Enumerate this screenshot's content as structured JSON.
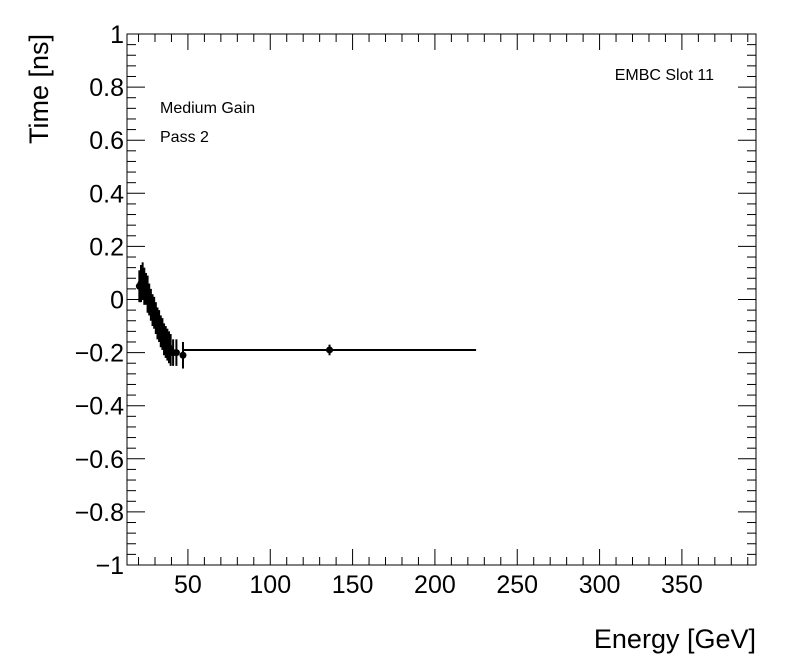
{
  "chart_data": {
    "type": "scatter",
    "title": "",
    "xlabel": "Energy [GeV]",
    "ylabel": "Time [ns]",
    "xlim": [
      13,
      395
    ],
    "ylim": [
      -1,
      1
    ],
    "x_ticks": [
      50,
      100,
      150,
      200,
      250,
      300,
      350
    ],
    "x_tick_labels": [
      "50",
      "100",
      "150",
      "200",
      "250",
      "300",
      "350"
    ],
    "y_ticks": [
      -1,
      -0.8,
      -0.6,
      -0.4,
      -0.2,
      0,
      0.2,
      0.4,
      0.6,
      0.8,
      1
    ],
    "y_tick_labels": [
      "−1",
      "−0.8",
      "−0.6",
      "−0.4",
      "−0.2",
      "0",
      "0.2",
      "0.4",
      "0.6",
      "0.8",
      "1"
    ],
    "grid": false,
    "legend": "none",
    "annotations": {
      "slot": "EMBC Slot 11",
      "gain": "Medium Gain",
      "pass": "Pass 2"
    },
    "series": [
      {
        "marker": "circle",
        "color": "#000000",
        "points": [
          {
            "x": 20.5,
            "y": 0.05,
            "xerr": 0.6,
            "yerr": 0.06
          },
          {
            "x": 21.5,
            "y": 0.06,
            "xerr": 0.6,
            "yerr": 0.07
          },
          {
            "x": 22.5,
            "y": 0.07,
            "xerr": 0.6,
            "yerr": 0.07
          },
          {
            "x": 23.5,
            "y": 0.05,
            "xerr": 0.6,
            "yerr": 0.07
          },
          {
            "x": 24.5,
            "y": 0.04,
            "xerr": 0.6,
            "yerr": 0.06
          },
          {
            "x": 25.5,
            "y": 0.02,
            "xerr": 0.6,
            "yerr": 0.07
          },
          {
            "x": 26.5,
            "y": 0.0,
            "xerr": 0.6,
            "yerr": 0.06
          },
          {
            "x": 27.5,
            "y": -0.02,
            "xerr": 0.6,
            "yerr": 0.06
          },
          {
            "x": 28.5,
            "y": -0.04,
            "xerr": 0.6,
            "yerr": 0.06
          },
          {
            "x": 29.5,
            "y": -0.05,
            "xerr": 0.6,
            "yerr": 0.06
          },
          {
            "x": 30.5,
            "y": -0.07,
            "xerr": 0.6,
            "yerr": 0.06
          },
          {
            "x": 31.5,
            "y": -0.09,
            "xerr": 0.6,
            "yerr": 0.06
          },
          {
            "x": 32.5,
            "y": -0.1,
            "xerr": 0.6,
            "yerr": 0.06
          },
          {
            "x": 33.5,
            "y": -0.12,
            "xerr": 0.6,
            "yerr": 0.06
          },
          {
            "x": 34.5,
            "y": -0.13,
            "xerr": 0.6,
            "yerr": 0.06
          },
          {
            "x": 35.5,
            "y": -0.15,
            "xerr": 0.6,
            "yerr": 0.06
          },
          {
            "x": 36.5,
            "y": -0.16,
            "xerr": 0.6,
            "yerr": 0.06
          },
          {
            "x": 37.5,
            "y": -0.17,
            "xerr": 0.6,
            "yerr": 0.06
          },
          {
            "x": 38.5,
            "y": -0.18,
            "xerr": 0.6,
            "yerr": 0.06
          },
          {
            "x": 39.5,
            "y": -0.19,
            "xerr": 0.6,
            "yerr": 0.06
          },
          {
            "x": 41.0,
            "y": -0.2,
            "xerr": 0.8,
            "yerr": 0.05
          },
          {
            "x": 43.0,
            "y": -0.2,
            "xerr": 1.0,
            "yerr": 0.05
          },
          {
            "x": 47.0,
            "y": -0.21,
            "xerr": 1.0,
            "yerr": 0.05
          },
          {
            "x": 136.0,
            "y": -0.19,
            "xerr": 89.0,
            "yerr": 0.02
          }
        ]
      }
    ]
  }
}
